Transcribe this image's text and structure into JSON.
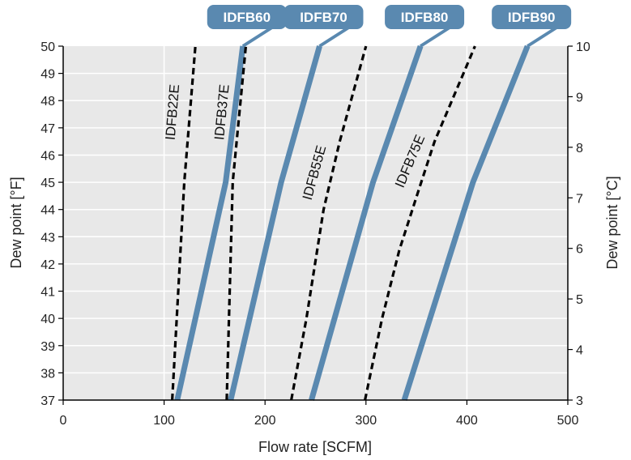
{
  "chart_data": {
    "type": "line",
    "xlabel": "Flow rate [SCFM]",
    "ylabel": "Dew point [°F]",
    "y2label": "Dew point [°C]",
    "xlim": [
      0,
      500
    ],
    "ylim": [
      37,
      50
    ],
    "y2lim": [
      3,
      10
    ],
    "xticks": [
      0,
      100,
      200,
      300,
      400,
      500
    ],
    "yticks": [
      37,
      38,
      39,
      40,
      41,
      42,
      43,
      44,
      45,
      46,
      47,
      48,
      49,
      50
    ],
    "y2ticks": [
      3,
      4,
      5,
      6,
      7,
      8,
      9,
      10
    ],
    "grid": true,
    "series": [
      {
        "name": "IDFB60",
        "style": "solid",
        "label_style": "badge",
        "x": [
          113,
          161,
          178
        ],
        "y": [
          37,
          45,
          50
        ]
      },
      {
        "name": "IDFB70",
        "style": "solid",
        "label_style": "badge",
        "x": [
          166,
          216,
          254
        ],
        "y": [
          37,
          45,
          50
        ]
      },
      {
        "name": "IDFB80",
        "style": "solid",
        "label_style": "badge",
        "x": [
          246,
          307,
          354
        ],
        "y": [
          37,
          45,
          50
        ]
      },
      {
        "name": "IDFB90",
        "style": "solid",
        "label_style": "badge",
        "x": [
          338,
          406,
          460
        ],
        "y": [
          37,
          45,
          50
        ]
      },
      {
        "name": "IDFB22E",
        "style": "dashed",
        "label_style": "rotated",
        "x": [
          108,
          120,
          131
        ],
        "y": [
          37,
          45,
          50
        ]
      },
      {
        "name": "IDFB37E",
        "style": "dashed",
        "label_style": "rotated",
        "x": [
          162,
          168,
          181
        ],
        "y": [
          37,
          45,
          50
        ]
      },
      {
        "name": "IDFB55E",
        "style": "dashed",
        "label_style": "rotated",
        "x": [
          226,
          241,
          258,
          274,
          300
        ],
        "y": [
          37,
          40,
          44,
          46.5,
          50
        ]
      },
      {
        "name": "IDFB75E",
        "style": "dashed",
        "label_style": "rotated",
        "x": [
          299,
          316,
          333,
          353,
          368,
          408
        ],
        "y": [
          37,
          40,
          42.5,
          44.8,
          46.5,
          50
        ]
      }
    ],
    "colors": {
      "solid_line": "#5a89b0",
      "dashed_line": "#000000",
      "badge_fill": "#5a89b0",
      "plot_background": "#e8e8e8",
      "grid": "#ffffff"
    }
  }
}
